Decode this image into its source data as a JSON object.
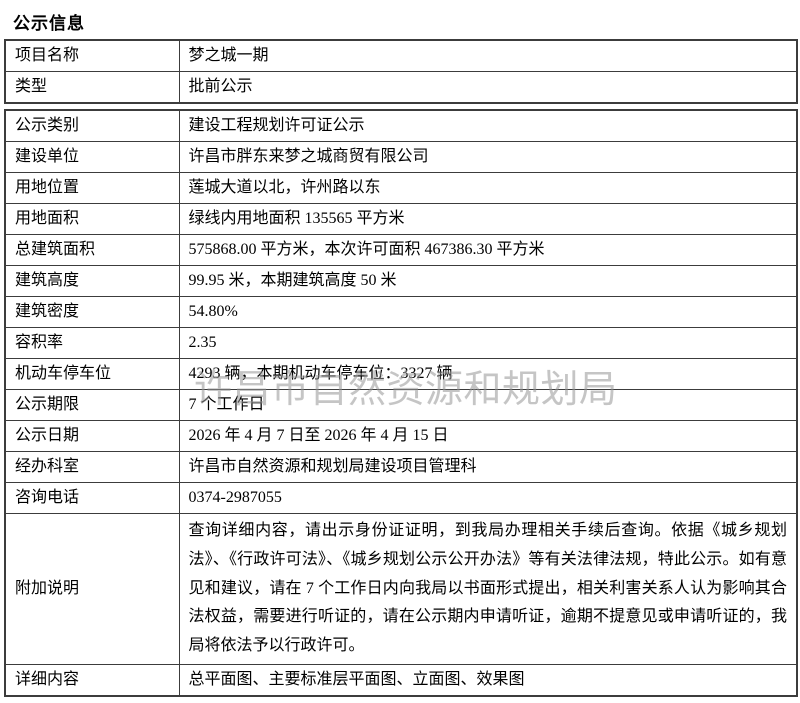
{
  "page": {
    "title": "公示信息"
  },
  "watermark": {
    "text": "许昌市自然资源和规划局",
    "color": "#969696"
  },
  "colors": {
    "border": "#3c3c3c",
    "text": "#000000",
    "background": "#ffffff"
  },
  "tables": {
    "top": {
      "rows": [
        {
          "label": "项目名称",
          "value": "梦之城一期"
        },
        {
          "label": "类型",
          "value": "批前公示"
        }
      ]
    },
    "main": {
      "rows": [
        {
          "label": "公示类别",
          "value": "建设工程规划许可证公示"
        },
        {
          "label": "建设单位",
          "value": "许昌市胖东来梦之城商贸有限公司"
        },
        {
          "label": "用地位置",
          "value": "莲城大道以北，许州路以东"
        },
        {
          "label": "用地面积",
          "value": "绿线内用地面积 135565 平方米"
        },
        {
          "label": "总建筑面积",
          "value": "575868.00 平方米，本次许可面积 467386.30 平方米"
        },
        {
          "label": "建筑高度",
          "value": "99.95 米，本期建筑高度 50 米"
        },
        {
          "label": "建筑密度",
          "value": "54.80%"
        },
        {
          "label": "容积率",
          "value": "2.35"
        },
        {
          "label": "机动车停车位",
          "value": "4293 辆，本期机动车停车位：3327 辆"
        },
        {
          "label": "公示期限",
          "value": "7 个工作日"
        },
        {
          "label": "公示日期",
          "value": "2026 年 4 月 7 日至 2026 年 4 月 15 日"
        },
        {
          "label": "经办科室",
          "value": "许昌市自然资源和规划局建设项目管理科"
        },
        {
          "label": "咨询电话",
          "value": "0374-2987055"
        },
        {
          "label": "附加说明",
          "value": "查询详细内容，请出示身份证证明，到我局办理相关手续后查询。依据《城乡规划法》、《行政许可法》、《城乡规划公示公开办法》等有关法律法规，特此公示。如有意见和建议，请在 7 个工作日内向我局以书面形式提出，相关利害关系人认为影响其合法权益，需要进行听证的，请在公示期内申请听证，逾期不提意见或申请听证的，我局将依法予以行政许可。",
          "multiline": true
        },
        {
          "label": "详细内容",
          "value": "总平面图、主要标准层平面图、立面图、效果图"
        }
      ]
    }
  }
}
